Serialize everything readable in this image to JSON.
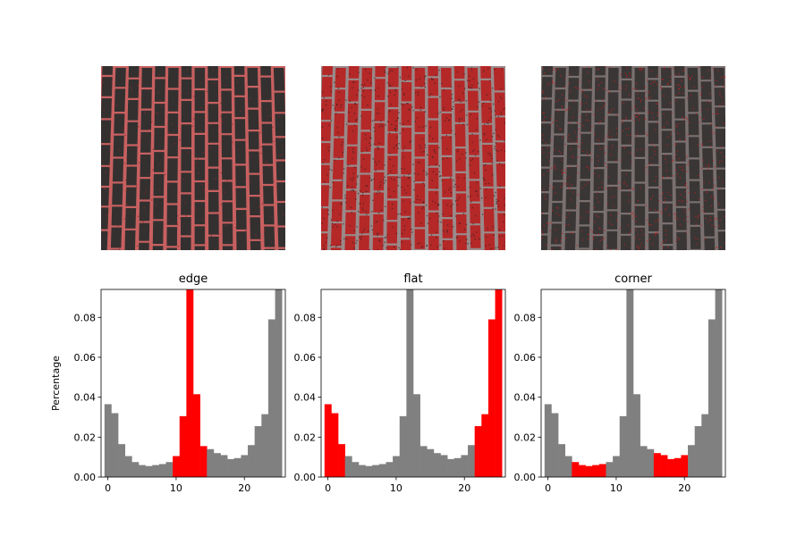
{
  "colors": {
    "highlight": "#ff0000",
    "base": "#808080",
    "mortar_edge": "#c86464",
    "brick_dark": "#3a3a3a",
    "brick_red": "#b42a2a",
    "mortar_gray": "#8c7a7a"
  },
  "images": [
    {
      "name": "edge",
      "style": "edge-highlight"
    },
    {
      "name": "flat",
      "style": "flat-highlight"
    },
    {
      "name": "corner",
      "style": "corner-highlight"
    }
  ],
  "chart_data": [
    {
      "type": "bar",
      "title": "edge",
      "xlabel": "",
      "ylabel": "Percentage",
      "xlim": [
        -1,
        26
      ],
      "ylim": [
        0,
        0.094
      ],
      "xticks": [
        0,
        10,
        20
      ],
      "yticks": [
        0.0,
        0.02,
        0.04,
        0.06,
        0.08
      ],
      "bins": [
        0,
        1,
        2,
        3,
        4,
        5,
        6,
        7,
        8,
        9,
        10,
        11,
        12,
        13,
        14,
        15,
        16,
        17,
        18,
        19,
        20,
        21,
        22,
        23,
        24,
        25
      ],
      "values": [
        0.0365,
        0.032,
        0.0165,
        0.0105,
        0.0075,
        0.006,
        0.0055,
        0.006,
        0.0065,
        0.0075,
        0.0105,
        0.0305,
        0.094,
        0.0415,
        0.0155,
        0.014,
        0.012,
        0.011,
        0.009,
        0.0095,
        0.011,
        0.016,
        0.0255,
        0.0315,
        0.079,
        0.094
      ],
      "highlight_bins": [
        10,
        11,
        12,
        13,
        14
      ]
    },
    {
      "type": "bar",
      "title": "flat",
      "xlabel": "",
      "ylabel": "",
      "xlim": [
        -1,
        26
      ],
      "ylim": [
        0,
        0.094
      ],
      "xticks": [
        0,
        10,
        20
      ],
      "yticks": [
        0.0,
        0.02,
        0.04,
        0.06,
        0.08
      ],
      "bins": [
        0,
        1,
        2,
        3,
        4,
        5,
        6,
        7,
        8,
        9,
        10,
        11,
        12,
        13,
        14,
        15,
        16,
        17,
        18,
        19,
        20,
        21,
        22,
        23,
        24,
        25
      ],
      "values": [
        0.0365,
        0.032,
        0.0165,
        0.0105,
        0.0075,
        0.006,
        0.0055,
        0.006,
        0.0065,
        0.0075,
        0.0105,
        0.0305,
        0.094,
        0.0415,
        0.0155,
        0.014,
        0.012,
        0.011,
        0.009,
        0.0095,
        0.011,
        0.016,
        0.0255,
        0.0315,
        0.079,
        0.094
      ],
      "highlight_bins": [
        0,
        1,
        2,
        22,
        23,
        24,
        25
      ]
    },
    {
      "type": "bar",
      "title": "corner",
      "xlabel": "",
      "ylabel": "",
      "xlim": [
        -1,
        26
      ],
      "ylim": [
        0,
        0.094
      ],
      "xticks": [
        0,
        10,
        20
      ],
      "yticks": [
        0.0,
        0.02,
        0.04,
        0.06,
        0.08
      ],
      "bins": [
        0,
        1,
        2,
        3,
        4,
        5,
        6,
        7,
        8,
        9,
        10,
        11,
        12,
        13,
        14,
        15,
        16,
        17,
        18,
        19,
        20,
        21,
        22,
        23,
        24,
        25
      ],
      "values": [
        0.0365,
        0.032,
        0.0165,
        0.0105,
        0.0075,
        0.006,
        0.0055,
        0.006,
        0.0065,
        0.0075,
        0.0105,
        0.0305,
        0.094,
        0.0415,
        0.0155,
        0.014,
        0.012,
        0.011,
        0.009,
        0.0095,
        0.011,
        0.016,
        0.0255,
        0.0315,
        0.079,
        0.094
      ],
      "highlight_bins": [
        4,
        5,
        6,
        7,
        8,
        16,
        17,
        18,
        19,
        20
      ]
    }
  ]
}
